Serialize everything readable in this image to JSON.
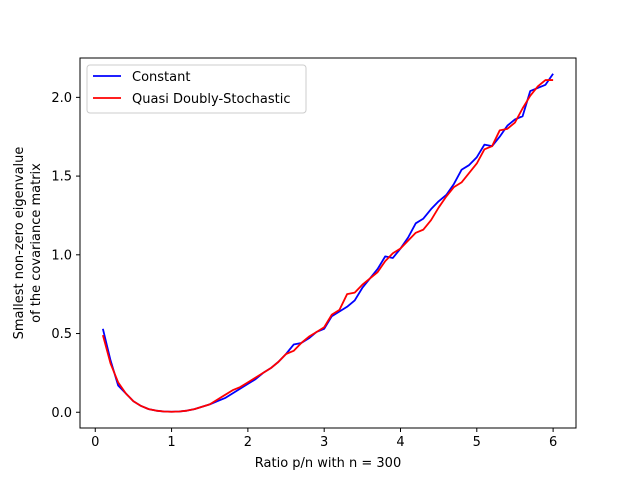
{
  "chart_data": {
    "type": "line",
    "title": "",
    "xlabel": "Ratio p/n with n = 300",
    "ylabel_lines": [
      "Smallest non-zero eigenvalue",
      "of the covariance matrix"
    ],
    "xlim": [
      -0.2,
      6.3
    ],
    "ylim": [
      -0.1,
      2.25
    ],
    "xticks": [
      0,
      1,
      2,
      3,
      4,
      5,
      6
    ],
    "xtick_labels": [
      "0",
      "1",
      "2",
      "3",
      "4",
      "5",
      "6"
    ],
    "yticks": [
      0.0,
      0.5,
      1.0,
      1.5,
      2.0
    ],
    "ytick_labels": [
      "0.0",
      "0.5",
      "1.0",
      "1.5",
      "2.0"
    ],
    "grid": false,
    "legend_position": "top-left",
    "x": [
      0.1,
      0.2,
      0.3,
      0.4,
      0.5,
      0.6,
      0.7,
      0.8,
      0.9,
      1.0,
      1.1,
      1.2,
      1.3,
      1.4,
      1.5,
      1.6,
      1.7,
      1.8,
      1.9,
      2.0,
      2.1,
      2.2,
      2.3,
      2.4,
      2.5,
      2.6,
      2.7,
      2.8,
      2.9,
      3.0,
      3.1,
      3.2,
      3.3,
      3.4,
      3.5,
      3.6,
      3.7,
      3.8,
      3.9,
      4.0,
      4.1,
      4.2,
      4.3,
      4.4,
      4.5,
      4.6,
      4.7,
      4.8,
      4.9,
      5.0,
      5.1,
      5.2,
      5.3,
      5.4,
      5.5,
      5.6,
      5.7,
      5.8,
      5.9,
      6.0
    ],
    "series": [
      {
        "name": "Constant",
        "color": "#0000ff",
        "values": [
          0.53,
          0.33,
          0.17,
          0.12,
          0.07,
          0.04,
          0.02,
          0.01,
          0.005,
          0.003,
          0.005,
          0.01,
          0.02,
          0.035,
          0.05,
          0.07,
          0.09,
          0.12,
          0.15,
          0.18,
          0.21,
          0.25,
          0.28,
          0.32,
          0.37,
          0.43,
          0.44,
          0.47,
          0.51,
          0.53,
          0.61,
          0.64,
          0.67,
          0.71,
          0.79,
          0.85,
          0.91,
          0.99,
          0.98,
          1.04,
          1.11,
          1.2,
          1.23,
          1.29,
          1.34,
          1.38,
          1.45,
          1.54,
          1.57,
          1.62,
          1.7,
          1.69,
          1.75,
          1.82,
          1.86,
          1.88,
          2.04,
          2.06,
          2.08,
          2.15
        ]
      },
      {
        "name": "Quasi Doubly-Stochastic",
        "color": "#ff0000",
        "values": [
          0.49,
          0.31,
          0.19,
          0.12,
          0.07,
          0.04,
          0.02,
          0.01,
          0.005,
          0.003,
          0.005,
          0.01,
          0.02,
          0.035,
          0.05,
          0.08,
          0.11,
          0.14,
          0.16,
          0.19,
          0.22,
          0.25,
          0.28,
          0.32,
          0.37,
          0.39,
          0.44,
          0.48,
          0.51,
          0.54,
          0.62,
          0.65,
          0.75,
          0.76,
          0.81,
          0.85,
          0.89,
          0.96,
          1.01,
          1.04,
          1.09,
          1.14,
          1.16,
          1.22,
          1.3,
          1.37,
          1.43,
          1.46,
          1.52,
          1.58,
          1.67,
          1.69,
          1.79,
          1.8,
          1.84,
          1.93,
          2.01,
          2.07,
          2.11,
          2.11
        ]
      }
    ]
  }
}
